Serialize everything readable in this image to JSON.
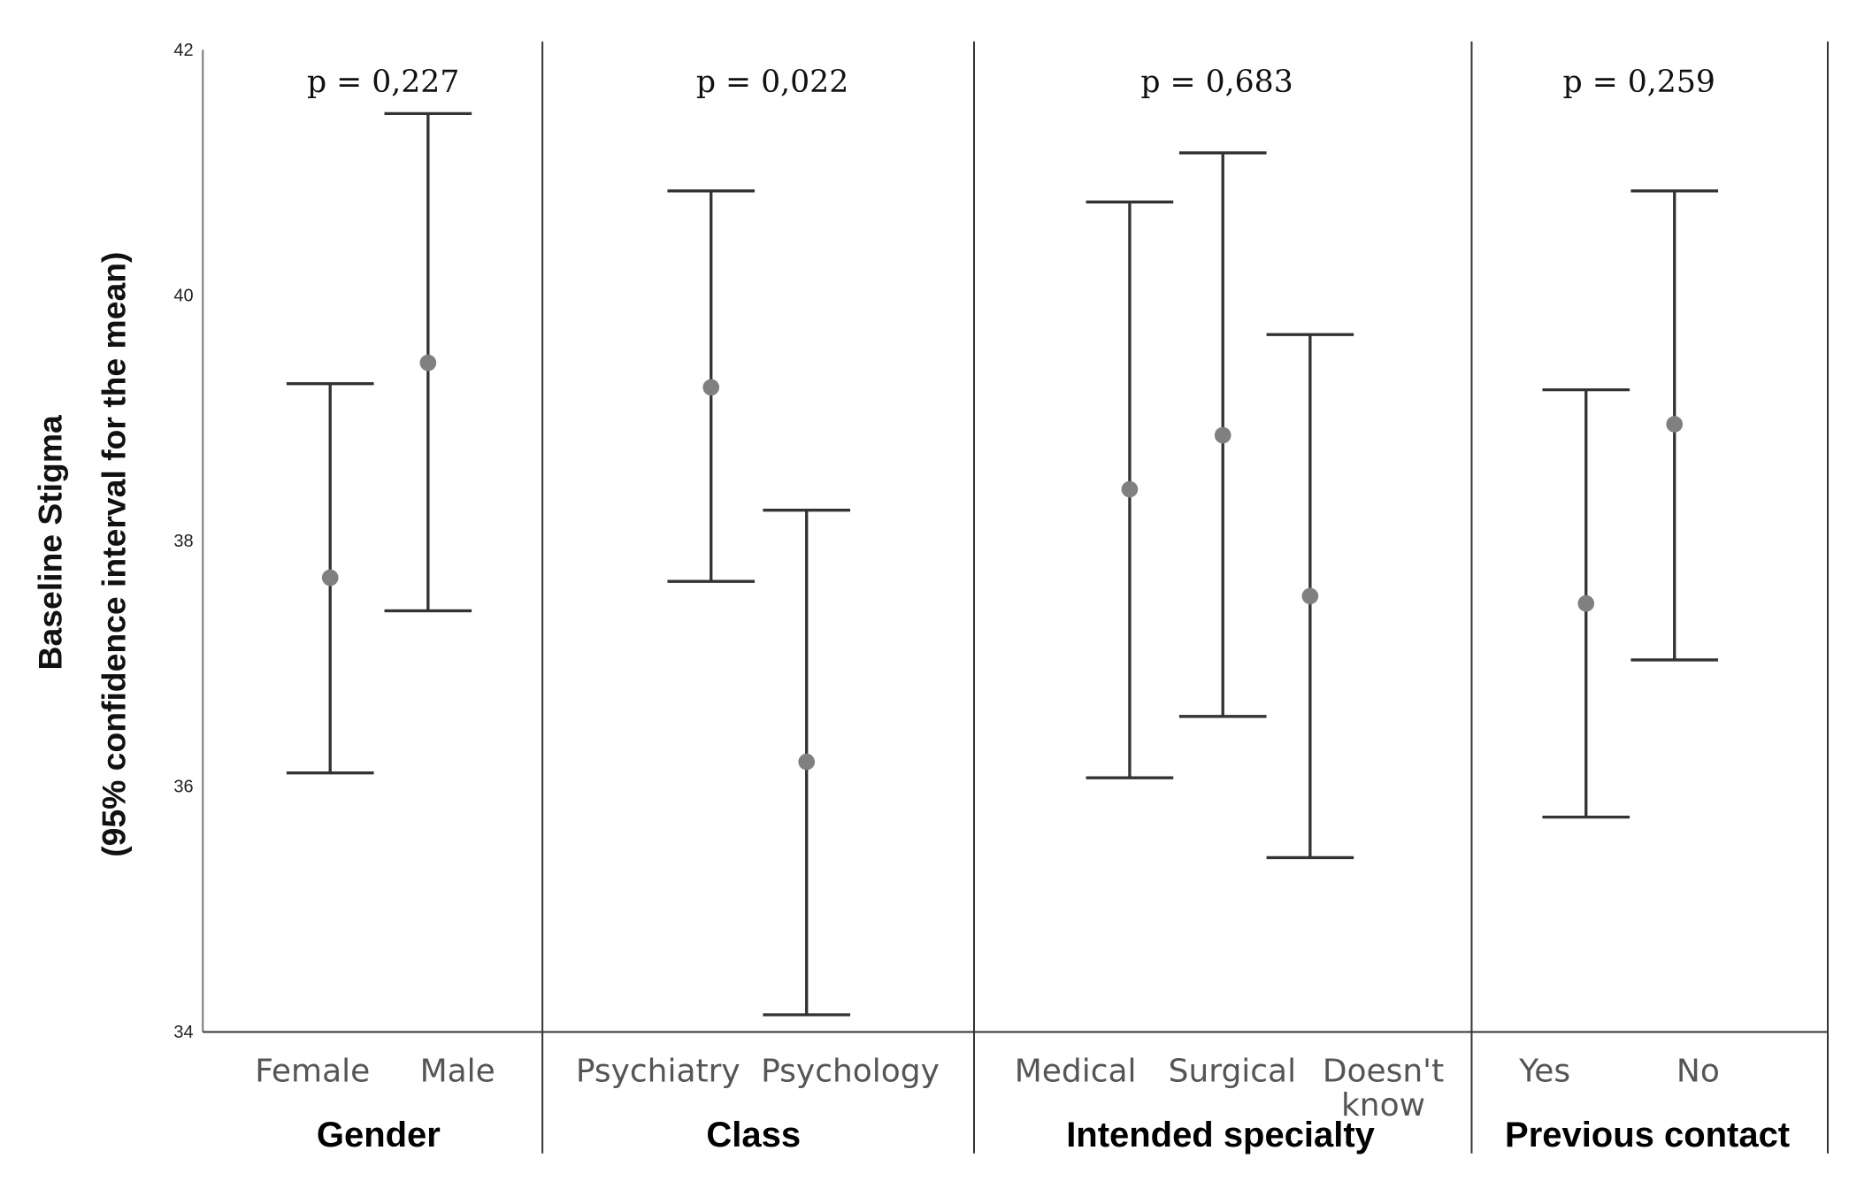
{
  "chart_data": {
    "type": "errorbar",
    "title": "",
    "ylabel": [
      "Baseline Stigma",
      "(95% confidence interval for the mean)"
    ],
    "ylim": [
      34,
      42
    ],
    "yticks": [
      34,
      36,
      38,
      40,
      42
    ],
    "grid": false,
    "groups": [
      {
        "name": "Gender",
        "p_label": "p = 0,227",
        "categories": [
          {
            "label": "Female",
            "mean": 37.7,
            "lower": 36.11,
            "upper": 39.28
          },
          {
            "label": "Male",
            "mean": 39.45,
            "lower": 37.43,
            "upper": 41.48
          }
        ]
      },
      {
        "name": "Class",
        "p_label": "p = 0,022",
        "categories": [
          {
            "label": "Psychiatry",
            "mean": 39.25,
            "lower": 37.67,
            "upper": 40.85
          },
          {
            "label": "Psychology",
            "mean": 36.2,
            "lower": 34.14,
            "upper": 38.25
          }
        ]
      },
      {
        "name": "Intended specialty",
        "p_label": "p = 0,683",
        "categories": [
          {
            "label": "Medical",
            "mean": 38.42,
            "lower": 36.07,
            "upper": 40.76
          },
          {
            "label": "Surgical",
            "mean": 38.86,
            "lower": 36.57,
            "upper": 41.16
          },
          {
            "label": "Doesn't know",
            "mean": 37.55,
            "lower": 35.42,
            "upper": 39.68
          }
        ]
      },
      {
        "name": "Previous contact",
        "p_label": "p = 0,259",
        "categories": [
          {
            "label": "Yes",
            "mean": 37.49,
            "lower": 35.75,
            "upper": 39.23
          },
          {
            "label": "No",
            "mean": 38.95,
            "lower": 37.03,
            "upper": 40.85
          }
        ]
      }
    ],
    "colors": {
      "bar": "#333333",
      "point": "#808080",
      "axis": "#333333"
    }
  }
}
